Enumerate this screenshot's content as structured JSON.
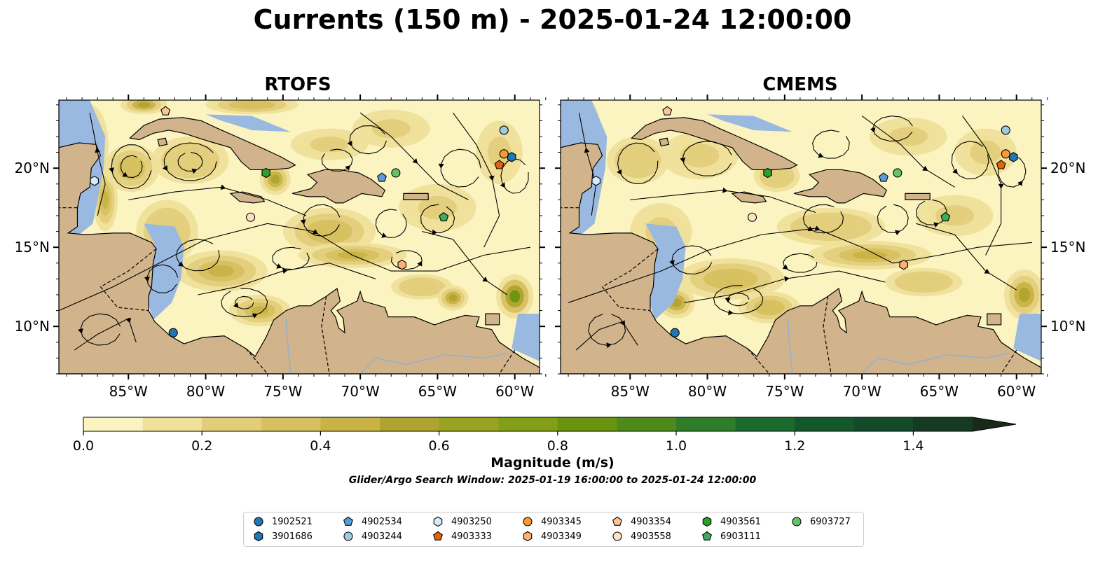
{
  "title": "Currents (150 m) - 2025-01-24 12:00:00",
  "panels": [
    {
      "title": "RTOFS"
    },
    {
      "title": "CMEMS"
    }
  ],
  "axes": {
    "lon_ticks": [
      "85°W",
      "80°W",
      "75°W",
      "70°W",
      "65°W",
      "60°W"
    ],
    "lat_ticks": [
      "20°N",
      "15°N",
      "10°N"
    ],
    "lon_range": [
      -89.5,
      -58.4
    ],
    "lat_range": [
      7.0,
      24.3
    ]
  },
  "colorbar": {
    "label": "Magnitude (m/s)",
    "ticks": [
      "0.0",
      "0.2",
      "0.4",
      "0.6",
      "0.8",
      "1.0",
      "1.2",
      "1.4"
    ],
    "range": [
      0.0,
      1.5
    ],
    "extend": "max",
    "colors": [
      "#fbf4c0",
      "#efe09a",
      "#e2cd7b",
      "#d6c060",
      "#c9b347",
      "#b0a430",
      "#98a322",
      "#839f16",
      "#6a9410",
      "#4e8a1b",
      "#2f7d29",
      "#1d6a2d",
      "#13582b",
      "#124a2a",
      "#163b23",
      "#1a2a18"
    ]
  },
  "search_window": "Glider/Argo Search Window: 2025-01-19 16:00:00 to 2025-01-24 12:00:00",
  "colors": {
    "land": "#d2b48c",
    "water": "#9ab9e0",
    "weak_current": "#fbf4c0"
  },
  "legend": [
    {
      "id": "1902521",
      "marker": "circle",
      "color": "#1f77b4",
      "lon": -82.1,
      "lat": 9.6
    },
    {
      "id": "3901686",
      "marker": "hexagon",
      "color": "#1f77b4",
      "lon": -60.2,
      "lat": 20.7
    },
    {
      "id": "4902534",
      "marker": "pentagon",
      "color": "#5b9bd5",
      "lon": -68.6,
      "lat": 19.4
    },
    {
      "id": "4903244",
      "marker": "circle",
      "color": "#9ecae1",
      "lon": -60.7,
      "lat": 22.4
    },
    {
      "id": "4903250",
      "marker": "hexagon",
      "color": "#d6ecfa",
      "lon": -87.2,
      "lat": 19.2
    },
    {
      "id": "4903333",
      "marker": "pentagon",
      "color": "#e6630a",
      "lon": -61.0,
      "lat": 20.2
    },
    {
      "id": "4903345",
      "marker": "circle",
      "color": "#f59a3a",
      "lon": -60.7,
      "lat": 20.9
    },
    {
      "id": "4903349",
      "marker": "hexagon",
      "color": "#fbb075",
      "lon": -67.3,
      "lat": 13.9
    },
    {
      "id": "4903354",
      "marker": "pentagon",
      "color": "#fcc597",
      "lon": -82.6,
      "lat": 23.6
    },
    {
      "id": "4903558",
      "marker": "circle",
      "color": "#ffe0c2",
      "lon": -77.1,
      "lat": 16.9
    },
    {
      "id": "4903561",
      "marker": "hexagon",
      "color": "#2ca02c",
      "lon": -76.1,
      "lat": 19.7
    },
    {
      "id": "6903111",
      "marker": "pentagon",
      "color": "#41ab5d",
      "lon": -64.6,
      "lat": 16.9
    },
    {
      "id": "6903727",
      "marker": "circle",
      "color": "#66c266",
      "lon": -67.7,
      "lat": 19.7
    }
  ]
}
